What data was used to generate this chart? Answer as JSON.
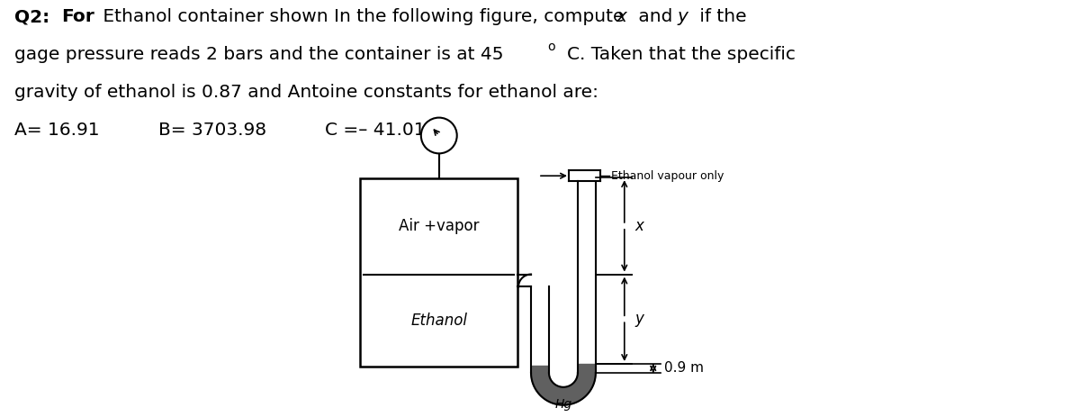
{
  "bg_color": "#ffffff",
  "text": {
    "line1_bold1": "Q2:",
    "line1_bold2": "For",
    "line1_normal": " Ethanol container shown In the following figure, compute ",
    "line1_x": "x",
    "line1_and": " and ",
    "line1_y": "y",
    "line1_end": " if the",
    "line2_normal": "gage pressure reads 2 bars and the container is at 45 ",
    "line2_sup": "o",
    "line2_end": "C. Taken that the specific",
    "line3": "gravity of ethanol is 0.87 and Antoine constants for ethanol are:",
    "line4_a": "A= 16.91",
    "line4_b": "B= 3703.98",
    "line4_c": "C =– 41.01",
    "fontsize": 14.5
  },
  "diagram": {
    "air_vapor_label": "Air +vapor",
    "ethanol_label": "Ethanol",
    "ethanol_vapour_label": "Ethanol vapour only",
    "x_label": "x",
    "y_label": "y",
    "dim_label": "0.9 m",
    "hg_label": "Hg"
  }
}
